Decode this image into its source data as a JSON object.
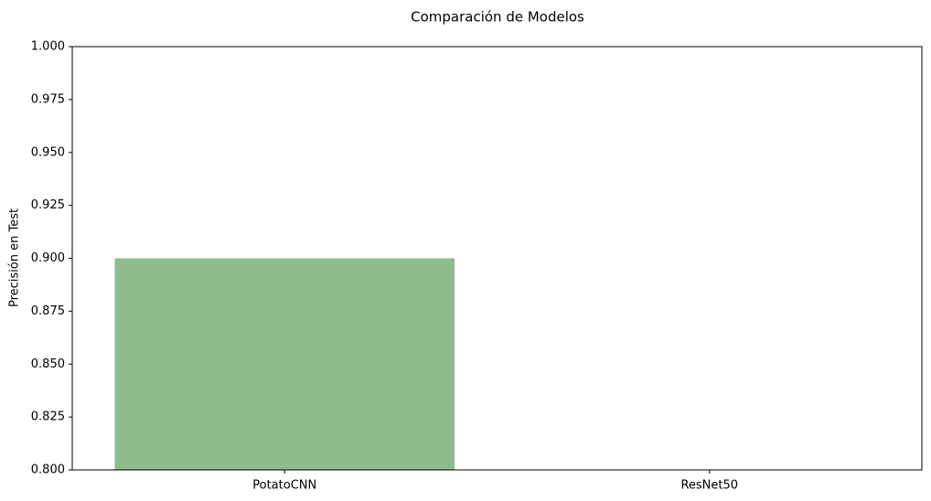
{
  "chart_data": {
    "type": "bar",
    "title": "Comparación de Modelos",
    "y_label": "Precisión en Test",
    "categories": [
      "PotatoCNN",
      "ResNet50"
    ],
    "values": [
      0.9,
      null
    ],
    "color": "#8fbc8f",
    "ylim": [
      0.8,
      1.0
    ],
    "yticks": [
      {
        "value": 0.8,
        "label": "0.800"
      },
      0.825,
      {
        "value": 0.85,
        "label": "0.850"
      },
      0.875,
      {
        "value": 0.9,
        "label": "0.900"
      },
      0.925,
      {
        "value": 0.95,
        "label": "0.950"
      },
      0.975,
      {
        "value": 1.0,
        "label": "1.000"
      }
    ],
    "grid": false
  }
}
